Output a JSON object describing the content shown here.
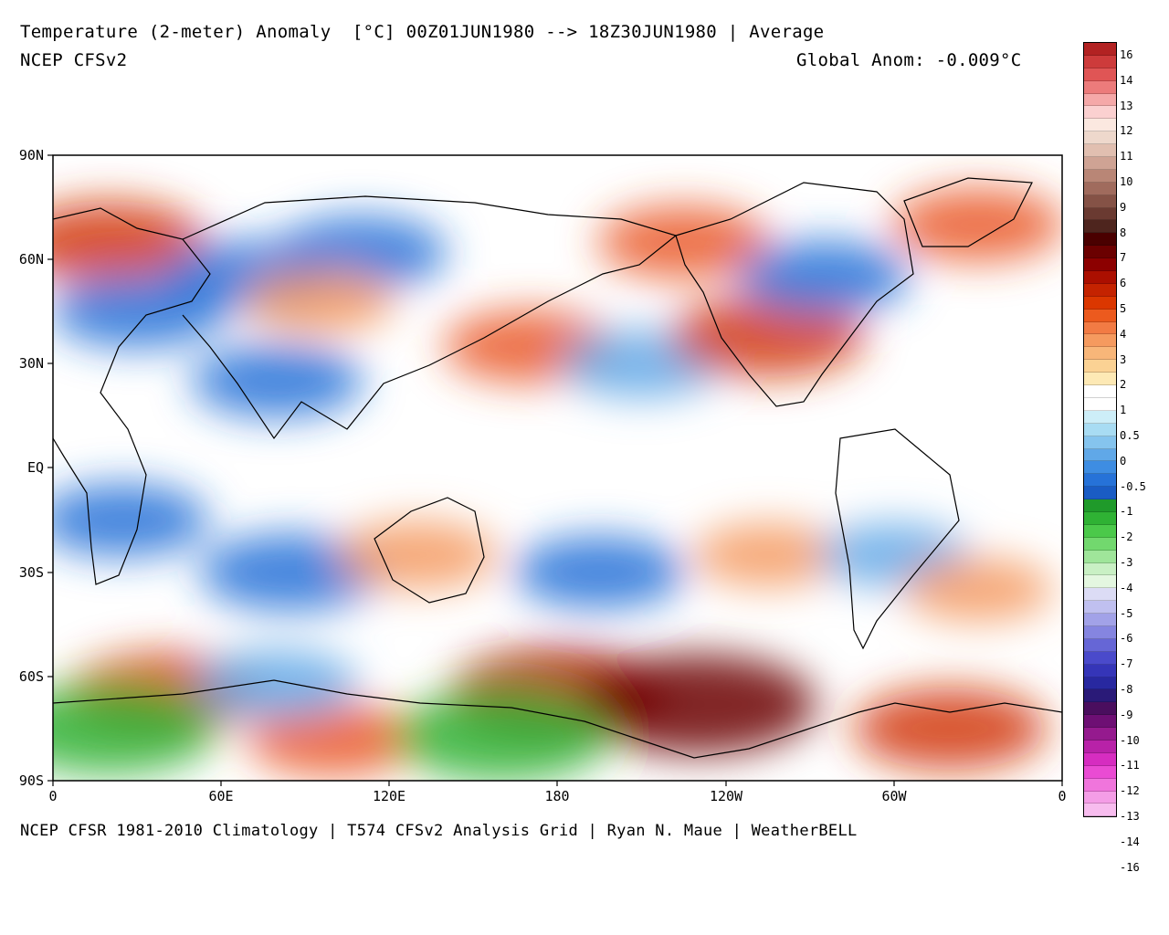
{
  "header": {
    "title": "Temperature (2-meter) Anomaly  [°C] 00Z01JUN1980 --> 18Z30JUN1980 | Average",
    "model": "NCEP CFSv2",
    "global_anom": "Global Anom: -0.009°C"
  },
  "footer": {
    "credits": "NCEP CFSR 1981-2010 Climatology | T574 CFSv2 Analysis Grid | Ryan N. Maue | WeatherBELL"
  },
  "axes": {
    "lat_labels": [
      "90N",
      "60N",
      "30N",
      "EQ",
      "30S",
      "60S",
      "90S"
    ],
    "lon_labels": [
      "0",
      "60E",
      "120E",
      "180",
      "120W",
      "60W",
      "0"
    ]
  },
  "colorbar": {
    "labels": [
      "16",
      "14",
      "13",
      "12",
      "11",
      "10",
      "9",
      "8",
      "7",
      "6",
      "5",
      "4",
      "3",
      "2",
      "1",
      "0.5",
      "0",
      "-0.5",
      "-1",
      "-2",
      "-3",
      "-4",
      "-5",
      "-6",
      "-7",
      "-8",
      "-9",
      "-10",
      "-11",
      "-12",
      "-13",
      "-14",
      "-16"
    ],
    "colors": [
      "#b22222",
      "#cd3b3b",
      "#e05555",
      "#ec7b7b",
      "#f5a8a8",
      "#fbd0d0",
      "#fbe8e0",
      "#eed8cc",
      "#e1bfb0",
      "#cfa394",
      "#b98676",
      "#a06b5d",
      "#855246",
      "#6a3a31",
      "#4e251e",
      "#4a0000",
      "#6b0000",
      "#8c0000",
      "#ab0f00",
      "#c42300",
      "#db3700",
      "#ec5a1e",
      "#f27b44",
      "#f59a5f",
      "#f8b679",
      "#fbd294",
      "#fde9b5",
      "#ffffff",
      "#ffffff",
      "#cdeef8",
      "#a8dcf3",
      "#85c4ee",
      "#60a8e8",
      "#3e8de2",
      "#2672d8",
      "#1a5cc4",
      "#1f9a2a",
      "#2fb234",
      "#4bc94a",
      "#72d86e",
      "#9fe59a",
      "#c9f0c4",
      "#e4f7e0",
      "#dcdcf5",
      "#c0c0f0",
      "#a2a2e8",
      "#8585e0",
      "#6666d6",
      "#4a4acb",
      "#3535b8",
      "#2828a0",
      "#2a1a78",
      "#4a0e5e",
      "#6e0f74",
      "#951a8e",
      "#b822a8",
      "#d62dc0",
      "#ea4bd3",
      "#f075dc",
      "#f49de6",
      "#f7bcee"
    ]
  },
  "chart_data": {
    "type": "heatmap",
    "title": "Temperature (2-meter) Anomaly",
    "units": "°C",
    "period": "00Z01JUN1980 --> 18Z30JUN1980",
    "global_anomaly": -0.009,
    "lat_range": [
      -90,
      90
    ],
    "lon_range": [
      0,
      360
    ],
    "anomaly_regions": [
      {
        "lon": 20,
        "lat": 65,
        "anom": 3
      },
      {
        "lon": 30,
        "lat": 45,
        "anom": -2
      },
      {
        "lon": 70,
        "lat": 55,
        "anom": -2
      },
      {
        "lon": 110,
        "lat": 62,
        "anom": -2
      },
      {
        "lon": 95,
        "lat": 48,
        "anom": 1
      },
      {
        "lon": 80,
        "lat": 25,
        "anom": -2
      },
      {
        "lon": 25,
        "lat": -15,
        "anom": -2
      },
      {
        "lon": 170,
        "lat": 35,
        "anom": 2
      },
      {
        "lon": 210,
        "lat": 30,
        "anom": -1.5
      },
      {
        "lon": 225,
        "lat": 65,
        "anom": 2
      },
      {
        "lon": 255,
        "lat": 38,
        "anom": 3
      },
      {
        "lon": 275,
        "lat": 55,
        "anom": -2
      },
      {
        "lon": 330,
        "lat": 70,
        "anom": 2
      },
      {
        "lon": 85,
        "lat": -30,
        "anom": -2.5
      },
      {
        "lon": 130,
        "lat": -25,
        "anom": 1.5
      },
      {
        "lon": 195,
        "lat": -30,
        "anom": -2
      },
      {
        "lon": 255,
        "lat": -25,
        "anom": 1
      },
      {
        "lon": 300,
        "lat": -25,
        "anom": -1
      },
      {
        "lon": 330,
        "lat": -35,
        "anom": 1
      },
      {
        "lon": 180,
        "lat": -65,
        "anom": 4
      },
      {
        "lon": 230,
        "lat": -68,
        "anom": 5
      },
      {
        "lon": 40,
        "lat": -65,
        "anom": 3
      },
      {
        "lon": 100,
        "lat": -78,
        "anom": 2
      },
      {
        "lon": 320,
        "lat": -75,
        "anom": 3
      },
      {
        "lon": 20,
        "lat": -75,
        "anom": -4
      },
      {
        "lon": 160,
        "lat": -77,
        "anom": -4
      },
      {
        "lon": 80,
        "lat": -62,
        "anom": -1.5
      }
    ]
  }
}
